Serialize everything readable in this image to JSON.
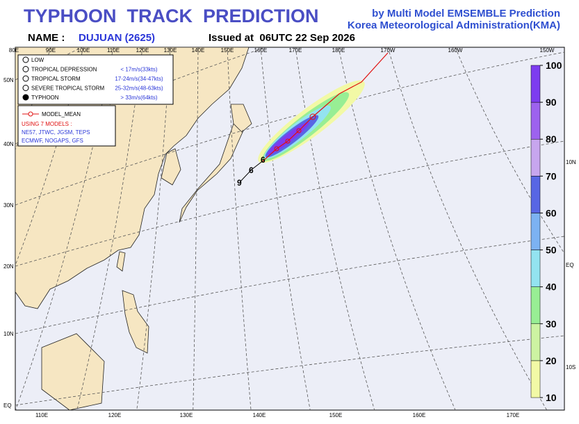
{
  "header": {
    "title": "TYPHOON  TRACK  PREDICTION",
    "subtitle_1": "by Multi Model EMSEMBLE Prediction",
    "subtitle_2": "Korea Meteorological Administration(KMA)",
    "name_label": "NAME :",
    "name": "DUJUAN (2625)",
    "issued": "Issued at  06UTC 22 Sep 2026"
  },
  "map": {
    "top_lon_labels": [
      "80E",
      "90E",
      "100E",
      "110E",
      "120E",
      "130E",
      "140E",
      "150E",
      "160E",
      "170E",
      "180E",
      "170W",
      "160W",
      "150W"
    ],
    "bottom_lon_labels": [
      "110E",
      "120E",
      "130E",
      "140E",
      "150E",
      "160E",
      "170E"
    ],
    "left_lat_labels": [
      "50N",
      "40N",
      "30N",
      "20N",
      "10N",
      "EQ"
    ],
    "right_lat_labels": [
      "10N",
      "EQ",
      "10S"
    ]
  },
  "legend": {
    "intensity": [
      {
        "label": "LOW",
        "speed": ""
      },
      {
        "label": "TROPICAL DEPRESSION",
        "speed": "< 17m/s(33kts)"
      },
      {
        "label": "TROPICAL STORM",
        "speed": "17-24m/s(34-47kts)"
      },
      {
        "label": "SEVERE TROPICAL STORM",
        "speed": "25-32m/s(48-63kts)"
      },
      {
        "label": "TYPHOON",
        "speed": "> 33m/s(64kts)"
      }
    ],
    "model_mean": "MODEL_MEAN",
    "models_heading": "USING 7 MODELS :",
    "model_lines": [
      "NE57, JTWC, JGSM, TEPS",
      "ECMWF, NOGAPS, GFS"
    ]
  },
  "colorbar": {
    "ticks": [
      10,
      20,
      30,
      40,
      50,
      60,
      70,
      80,
      90,
      100
    ],
    "colors": [
      "#f2f9a6",
      "#cdf3a2",
      "#98ee94",
      "#93e3f0",
      "#7cb2f2",
      "#5866e4",
      "#c7a6ee",
      "#9d62ee",
      "#7d3cf0"
    ]
  }
}
